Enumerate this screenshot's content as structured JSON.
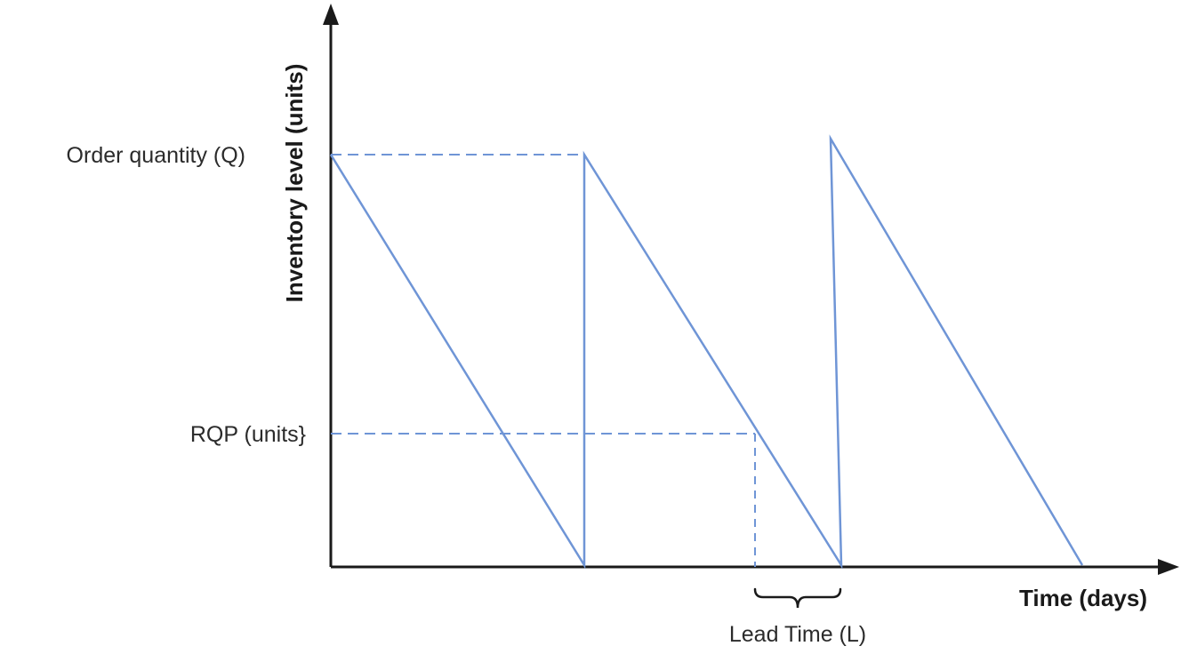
{
  "diagram": {
    "y_axis_label": "Inventory level (units)",
    "x_axis_label": "Time (days)",
    "order_quantity_label": "Order quantity (Q)",
    "reorder_point_label": "RQP (units}",
    "lead_time_label": "Lead Time (L)"
  },
  "colors": {
    "line": "#6f95d6",
    "axis": "#1a1a1a",
    "text": "#2b2b2b"
  },
  "icons": [
    "arrow-up-icon",
    "arrow-right-icon",
    "curly-brace-icon"
  ]
}
